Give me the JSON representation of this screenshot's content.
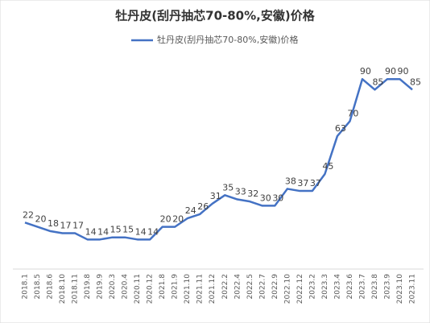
{
  "chart_data": {
    "type": "line",
    "title": "牡丹皮(刮丹抽芯70-80%,安徽)价格",
    "categories": [
      "2018.1",
      "2018.5",
      "2018.6",
      "2018.10",
      "2018.11",
      "2019.8",
      "2019.9",
      "2020.3",
      "2020.4",
      "2020.11",
      "2020.12",
      "2021.8",
      "2021.9",
      "2021.10",
      "2021.11",
      "2021.12",
      "2022.2",
      "2022.4",
      "2022.5",
      "2022.7",
      "2022.9",
      "2022.10",
      "2022.12",
      "2023.2",
      "2023.3",
      "2023.4",
      "2023.6",
      "2023.7",
      "2023.8",
      "2023.9",
      "2023.10",
      "2023.11"
    ],
    "series": [
      {
        "name": "牡丹皮(刮丹抽芯70-80%,安徽)价格",
        "color": "#4472c4",
        "values": [
          22,
          20,
          18,
          17,
          17,
          14,
          14,
          15,
          15,
          14,
          14,
          20,
          20,
          24,
          26,
          31,
          35,
          33,
          32,
          30,
          30,
          38,
          37,
          37,
          45,
          63,
          70,
          90,
          85,
          90,
          90,
          85
        ]
      }
    ],
    "ylim": [
      0,
      100
    ]
  }
}
